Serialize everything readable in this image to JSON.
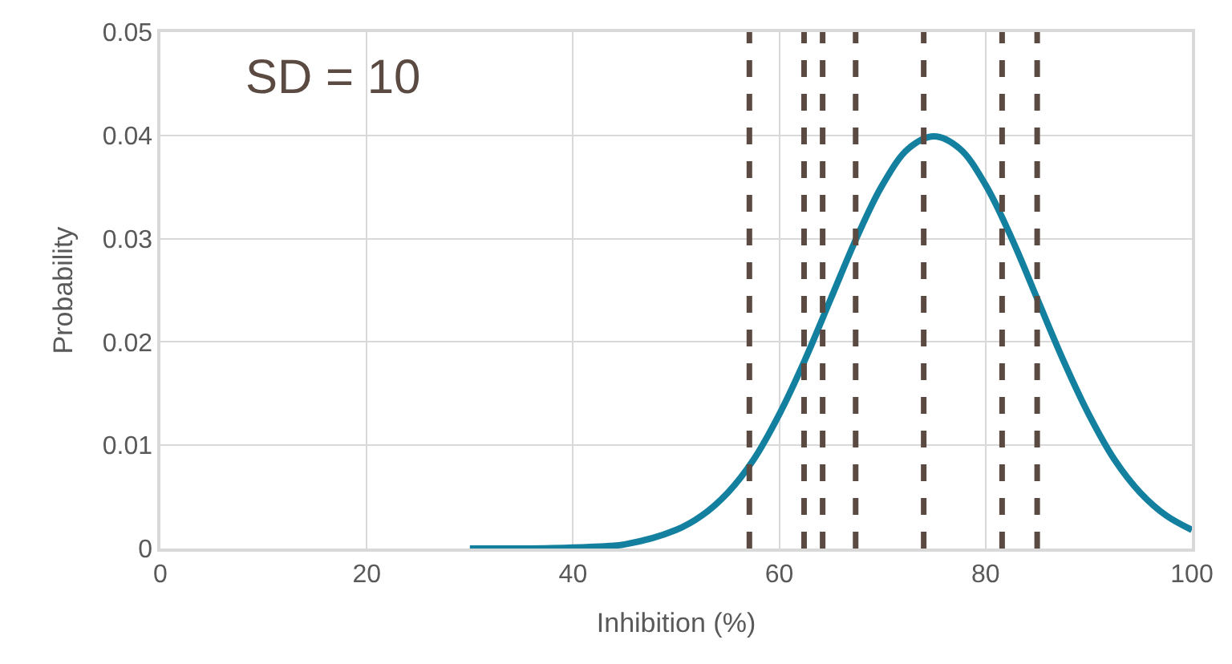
{
  "chart_data": {
    "type": "line",
    "xlabel": "Inhibition (%)",
    "ylabel": "Probability",
    "annotations": [
      "SD = 10"
    ],
    "x": [
      30,
      35,
      40,
      45,
      50,
      52.5,
      55,
      57.5,
      60,
      62.5,
      65,
      67.5,
      70,
      72.5,
      75,
      77.5,
      80,
      82.5,
      85,
      87.5,
      90,
      92.5,
      95,
      97.5,
      100
    ],
    "series": [
      {
        "color": "#14809f",
        "values": [
          0.0,
          0.0,
          0.0001,
          0.0004,
          0.0018,
          0.0032,
          0.0054,
          0.0086,
          0.013,
          0.0183,
          0.0242,
          0.0301,
          0.0352,
          0.0387,
          0.0399,
          0.0387,
          0.0352,
          0.0301,
          0.0242,
          0.0183,
          0.013,
          0.0086,
          0.0054,
          0.0032,
          0.0018
        ]
      }
    ],
    "ref_lines": [
      {
        "axis": "x",
        "value": 57.1,
        "color": "#5a4a42",
        "line_style": "dashed"
      },
      {
        "axis": "x",
        "value": 62.4,
        "color": "#5a4a42",
        "line_style": "dashed"
      },
      {
        "axis": "x",
        "value": 64.2,
        "color": "#5a4a42",
        "line_style": "dashed"
      },
      {
        "axis": "x",
        "value": 67.4,
        "color": "#5a4a42",
        "line_style": "dashed"
      },
      {
        "axis": "x",
        "value": 74.0,
        "color": "#5a4a42",
        "line_style": "dashed"
      },
      {
        "axis": "x",
        "value": 81.6,
        "color": "#5a4a42",
        "line_style": "dashed"
      },
      {
        "axis": "x",
        "value": 85.0,
        "color": "#5a4a42",
        "line_style": "dashed"
      }
    ],
    "xlim": [
      0,
      100
    ],
    "xticks": [
      0,
      20,
      40,
      60,
      80,
      100
    ],
    "ylim": [
      0,
      0.05
    ],
    "yticks": [
      0,
      0.01,
      0.02,
      0.03,
      0.04,
      0.05
    ],
    "grid": true,
    "line_style": "solid",
    "marker": "none"
  }
}
